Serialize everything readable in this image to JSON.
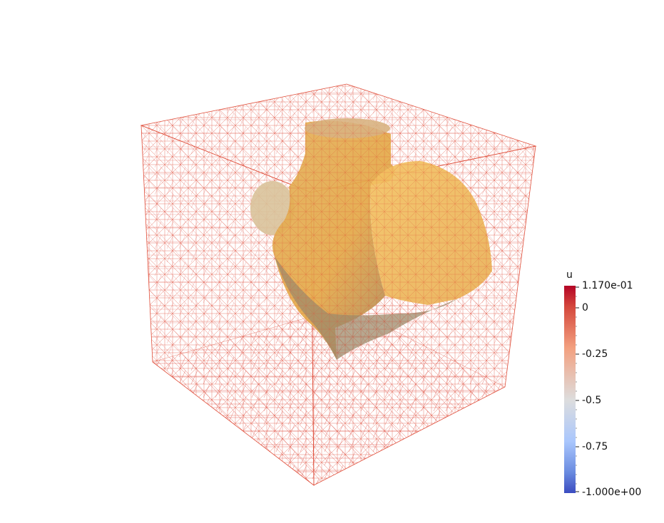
{
  "scene": {
    "background": "#ffffff",
    "wireframe_color": "#e0503c",
    "surface_color": "#f0b54c"
  },
  "legend": {
    "title": "u",
    "max_label": "1.170e-01",
    "min_label": "-1.000e+00",
    "tick_labels": [
      "0",
      "-0.25",
      "-0.5",
      "-0.75"
    ],
    "color_top": "#b40426",
    "color_mid": "#dddddd",
    "color_bottom": "#3b4cc0"
  }
}
